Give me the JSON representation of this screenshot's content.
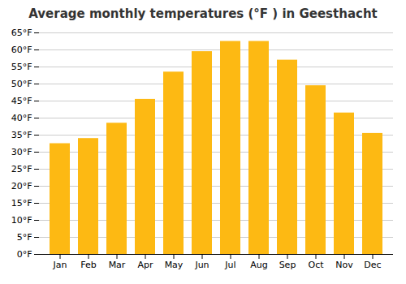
{
  "chart_data": {
    "type": "bar",
    "title": "Average monthly temperatures (°F ) in Geesthacht",
    "categories": [
      "Jan",
      "Feb",
      "Mar",
      "Apr",
      "May",
      "Jun",
      "Jul",
      "Aug",
      "Sep",
      "Oct",
      "Nov",
      "Dec"
    ],
    "values": [
      32.5,
      34.0,
      38.5,
      45.5,
      53.5,
      59.5,
      62.5,
      62.5,
      57.0,
      49.5,
      41.5,
      35.5
    ],
    "color": "#FDB913",
    "ylim": [
      0,
      65
    ],
    "yticks": [
      {
        "value": 0,
        "label": "0°F"
      },
      {
        "value": 5,
        "label": "5°F"
      },
      {
        "value": 10,
        "label": "10°F"
      },
      {
        "value": 15,
        "label": "15°F"
      },
      {
        "value": 20,
        "label": "20°F"
      },
      {
        "value": 25,
        "label": "25°F"
      },
      {
        "value": 30,
        "label": "30°F"
      },
      {
        "value": 35,
        "label": "35°F"
      },
      {
        "value": 40,
        "label": "40°F"
      },
      {
        "value": 45,
        "label": "45°F"
      },
      {
        "value": 50,
        "label": "50°F"
      },
      {
        "value": 55,
        "label": "55°F"
      },
      {
        "value": 60,
        "label": "60°F"
      },
      {
        "value": 65,
        "label": "65°F"
      }
    ],
    "grid": true
  }
}
